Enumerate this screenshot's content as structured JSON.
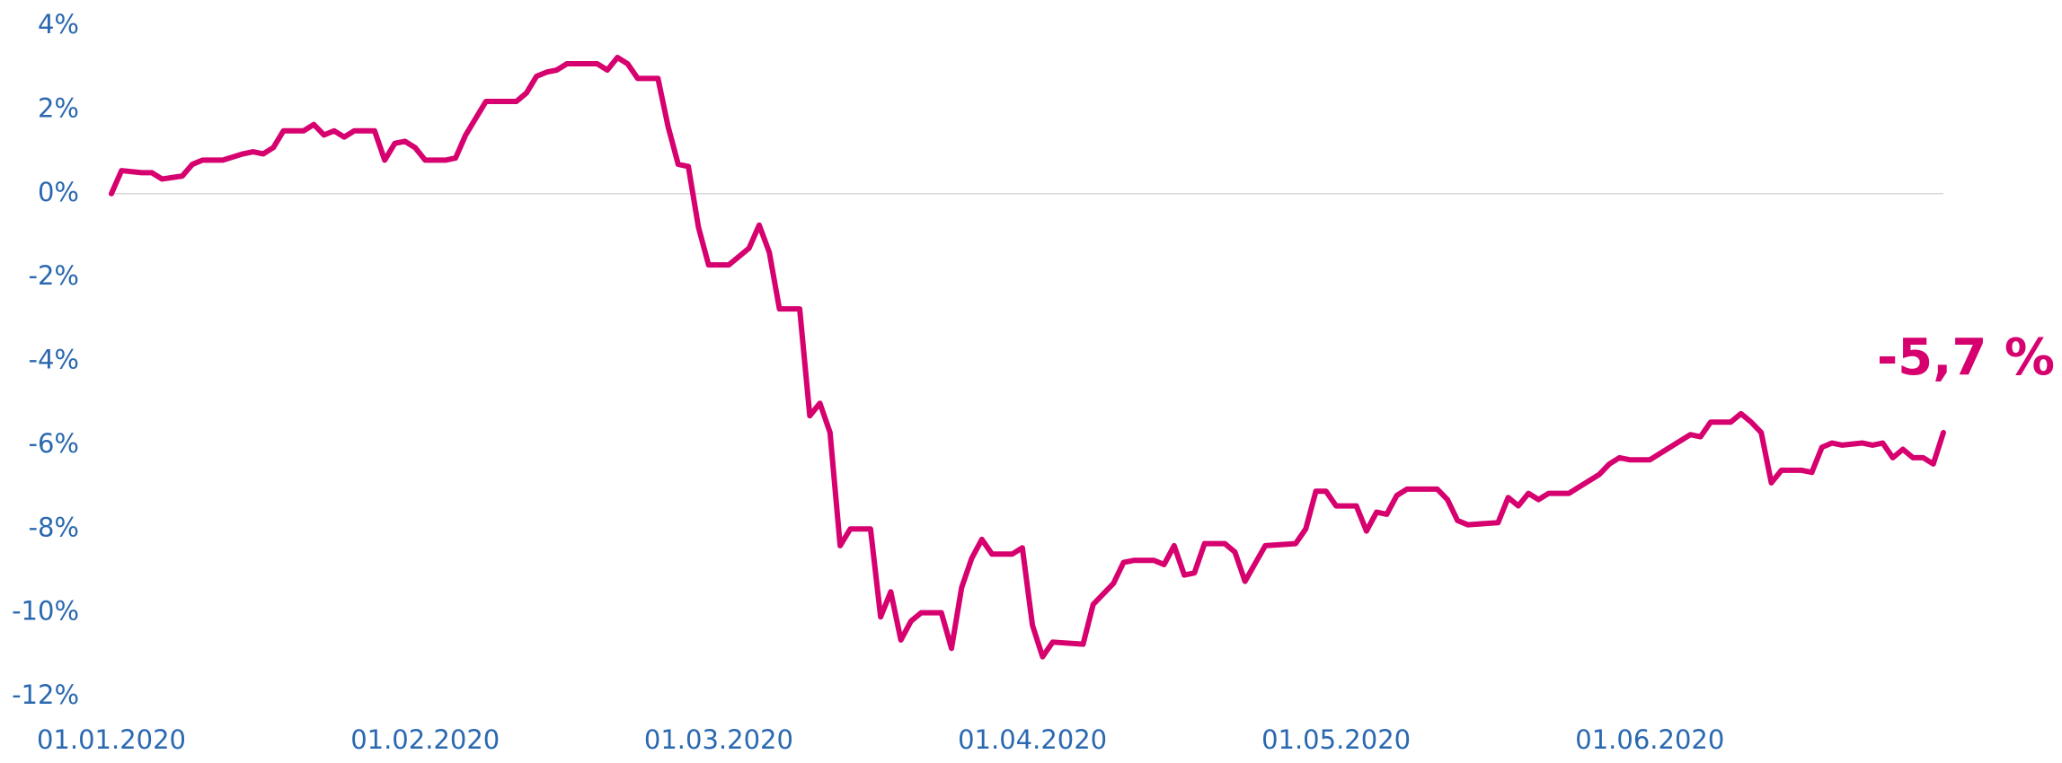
{
  "chart_data": {
    "type": "line",
    "color": "#d6006f",
    "x": [
      "2020-01-01",
      "2020-01-02",
      "2020-01-04",
      "2020-01-05",
      "2020-01-06",
      "2020-01-08",
      "2020-01-09",
      "2020-01-10",
      "2020-01-12",
      "2020-01-14",
      "2020-01-15",
      "2020-01-16",
      "2020-01-17",
      "2020-01-18",
      "2020-01-20",
      "2020-01-21",
      "2020-01-22",
      "2020-01-23",
      "2020-01-24",
      "2020-01-25",
      "2020-01-27",
      "2020-01-28",
      "2020-01-29",
      "2020-01-30",
      "2020-01-31",
      "2020-02-01",
      "2020-02-03",
      "2020-02-04",
      "2020-02-05",
      "2020-02-06",
      "2020-02-07",
      "2020-02-10",
      "2020-02-11",
      "2020-02-12",
      "2020-02-13",
      "2020-02-14",
      "2020-02-15",
      "2020-02-18",
      "2020-02-19",
      "2020-02-20",
      "2020-02-21",
      "2020-02-22",
      "2020-02-24",
      "2020-02-25",
      "2020-02-26",
      "2020-02-27",
      "2020-02-28",
      "2020-02-29",
      "2020-03-02",
      "2020-03-03",
      "2020-03-04",
      "2020-03-05",
      "2020-03-06",
      "2020-03-07",
      "2020-03-09",
      "2020-03-10",
      "2020-03-11",
      "2020-03-12",
      "2020-03-13",
      "2020-03-14",
      "2020-03-16",
      "2020-03-17",
      "2020-03-18",
      "2020-03-19",
      "2020-03-20",
      "2020-03-21",
      "2020-03-23",
      "2020-03-24",
      "2020-03-25",
      "2020-03-26",
      "2020-03-27",
      "2020-03-28",
      "2020-03-30",
      "2020-03-31",
      "2020-04-01",
      "2020-04-02",
      "2020-04-03",
      "2020-04-06",
      "2020-04-07",
      "2020-04-09",
      "2020-04-10",
      "2020-04-11",
      "2020-04-13",
      "2020-04-14",
      "2020-04-15",
      "2020-04-16",
      "2020-04-17",
      "2020-04-18",
      "2020-04-20",
      "2020-04-21",
      "2020-04-22",
      "2020-04-24",
      "2020-04-27",
      "2020-04-28",
      "2020-04-29",
      "2020-04-30",
      "2020-05-01",
      "2020-05-03",
      "2020-05-04",
      "2020-05-05",
      "2020-05-06",
      "2020-05-07",
      "2020-05-08",
      "2020-05-11",
      "2020-05-12",
      "2020-05-13",
      "2020-05-14",
      "2020-05-17",
      "2020-05-18",
      "2020-05-19",
      "2020-05-20",
      "2020-05-21",
      "2020-05-22",
      "2020-05-24",
      "2020-05-25",
      "2020-05-27",
      "2020-05-28",
      "2020-05-29",
      "2020-05-30",
      "2020-06-01",
      "2020-06-03",
      "2020-06-05",
      "2020-06-06",
      "2020-06-07",
      "2020-06-09",
      "2020-06-10",
      "2020-06-11",
      "2020-06-12",
      "2020-06-13",
      "2020-06-14",
      "2020-06-16",
      "2020-06-17",
      "2020-06-18",
      "2020-06-19",
      "2020-06-20",
      "2020-06-22",
      "2020-06-23",
      "2020-06-24",
      "2020-06-25",
      "2020-06-26",
      "2020-06-27",
      "2020-06-28",
      "2020-06-29",
      "2020-06-30"
    ],
    "values": [
      0,
      0.55,
      0.5,
      0.5,
      0.35,
      0.42,
      0.7,
      0.8,
      0.8,
      0.95,
      1.0,
      0.95,
      1.1,
      1.5,
      1.5,
      1.65,
      1.4,
      1.5,
      1.35,
      1.5,
      1.5,
      0.8,
      1.2,
      1.25,
      1.1,
      0.8,
      0.8,
      0.85,
      1.4,
      1.8,
      2.2,
      2.2,
      2.4,
      2.8,
      2.9,
      2.95,
      3.1,
      3.1,
      2.95,
      3.25,
      3.1,
      2.75,
      2.75,
      1.6,
      0.7,
      0.65,
      -0.8,
      -1.7,
      -1.7,
      -1.5,
      -1.3,
      -0.75,
      -1.4,
      -2.75,
      -2.75,
      -5.3,
      -5.0,
      -5.7,
      -8.4,
      -8.0,
      -8.0,
      -10.1,
      -9.5,
      -10.65,
      -10.2,
      -10.0,
      -10.0,
      -10.85,
      -9.4,
      -8.7,
      -8.25,
      -8.6,
      -8.6,
      -8.45,
      -10.3,
      -11.05,
      -10.7,
      -10.75,
      -9.8,
      -9.3,
      -8.8,
      -8.75,
      -8.75,
      -8.85,
      -8.4,
      -9.1,
      -9.05,
      -8.35,
      -8.35,
      -8.55,
      -9.25,
      -8.4,
      -8.35,
      -8.0,
      -7.1,
      -7.1,
      -7.45,
      -7.45,
      -8.05,
      -7.6,
      -7.65,
      -7.2,
      -7.05,
      -7.05,
      -7.3,
      -7.8,
      -7.9,
      -7.85,
      -7.25,
      -7.45,
      -7.15,
      -7.3,
      -7.15,
      -7.15,
      -7.0,
      -6.7,
      -6.45,
      -6.3,
      -6.35,
      -6.35,
      -6.05,
      -5.75,
      -5.8,
      -5.45,
      -5.45,
      -5.25,
      -5.45,
      -5.7,
      -6.9,
      -6.6,
      -6.6,
      -6.65,
      -6.05,
      -5.95,
      -6.0,
      -5.95,
      -6.0,
      -5.95,
      -6.3,
      -6.1,
      -6.3,
      -6.3,
      -6.45,
      -5.7
    ],
    "xlim": [
      "2020-01-01",
      "2020-06-30"
    ],
    "xticks": [
      {
        "value": "2020-01-01",
        "label": "01.01.2020"
      },
      {
        "value": "2020-02-01",
        "label": "01.02.2020"
      },
      {
        "value": "2020-03-01",
        "label": "01.03.2020"
      },
      {
        "value": "2020-04-01",
        "label": "01.04.2020"
      },
      {
        "value": "2020-05-01",
        "label": "01.05.2020"
      },
      {
        "value": "2020-06-01",
        "label": "01.06.2020"
      }
    ],
    "ylim": [
      -12,
      4
    ],
    "yticks": [
      {
        "value": 4,
        "label": "4%"
      },
      {
        "value": 2,
        "label": "2%"
      },
      {
        "value": 0,
        "label": "0%"
      },
      {
        "value": -2,
        "label": "-2%"
      },
      {
        "value": -4,
        "label": "-4%"
      },
      {
        "value": -6,
        "label": "-6%"
      },
      {
        "value": -8,
        "label": "-8%"
      },
      {
        "value": -10,
        "label": "-10%"
      },
      {
        "value": -12,
        "label": "-12%"
      }
    ],
    "zero_line": true,
    "annotations": [
      {
        "text": "-5,7 %"
      }
    ]
  }
}
